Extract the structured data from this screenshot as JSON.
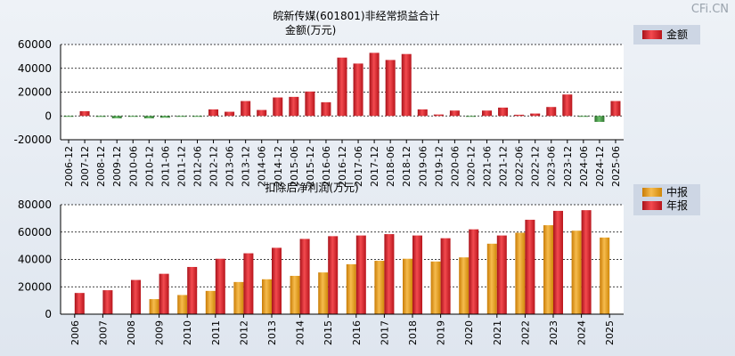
{
  "watermark": "CFi.CN",
  "chart_data": [
    {
      "type": "bar",
      "title": "皖新传媒(601801)非经常损益合计",
      "ylabel": "金额(万元)",
      "ylim": [
        -20000,
        60000
      ],
      "yticks": [
        "60000",
        "40000",
        "20000",
        "0",
        "-20000"
      ],
      "legend": [
        "金额"
      ],
      "categories": [
        "2006-12",
        "2007-12",
        "2008-12",
        "2009-12",
        "2010-06",
        "2010-12",
        "2011-06",
        "2011-12",
        "2012-06",
        "2012-12",
        "2013-06",
        "2013-12",
        "2014-06",
        "2014-12",
        "2015-06",
        "2015-12",
        "2016-06",
        "2016-12",
        "2017-06",
        "2017-12",
        "2018-06",
        "2018-12",
        "2019-06",
        "2019-12",
        "2020-06",
        "2020-12",
        "2021-06",
        "2021-12",
        "2022-06",
        "2022-12",
        "2023-06",
        "2023-12",
        "2024-06",
        "2024-12",
        "2025-06"
      ],
      "values": [
        -200,
        4000,
        -800,
        -2000,
        -700,
        -2000,
        -1500,
        -600,
        -400,
        5500,
        3500,
        12500,
        5000,
        15500,
        16000,
        20500,
        11500,
        49000,
        44000,
        53000,
        47000,
        52000,
        5500,
        1200,
        4500,
        -400,
        4500,
        7000,
        1000,
        2000,
        7500,
        18000,
        -300,
        -5000,
        12500
      ]
    },
    {
      "type": "bar",
      "title": "扣除后净利润(万元)",
      "ylim": [
        0,
        80000
      ],
      "yticks": [
        "80000",
        "60000",
        "40000",
        "20000",
        "0"
      ],
      "legend": [
        "中报",
        "年报"
      ],
      "categories": [
        "2006",
        "2007",
        "2008",
        "2009",
        "2010",
        "2011",
        "2012",
        "2013",
        "2014",
        "2015",
        "2016",
        "2017",
        "2018",
        "2019",
        "2020",
        "2021",
        "2022",
        "2023",
        "2024",
        "2025"
      ],
      "series": [
        {
          "name": "中报",
          "values": [
            null,
            null,
            null,
            11000,
            14000,
            17000,
            23500,
            25500,
            28000,
            30500,
            36500,
            39000,
            40500,
            38500,
            41500,
            51500,
            59500,
            65000,
            61000,
            56000
          ]
        },
        {
          "name": "年报",
          "values": [
            15500,
            17500,
            25000,
            29500,
            34500,
            40500,
            44500,
            48500,
            55000,
            57000,
            57500,
            58500,
            57500,
            55500,
            62000,
            57500,
            69000,
            75500,
            76000,
            null
          ]
        }
      ]
    }
  ],
  "colors": {
    "red": "#e0262b",
    "orange": "#f0a01c",
    "green": "#3d8f3d",
    "legend_bg": "#cdd6e4"
  }
}
